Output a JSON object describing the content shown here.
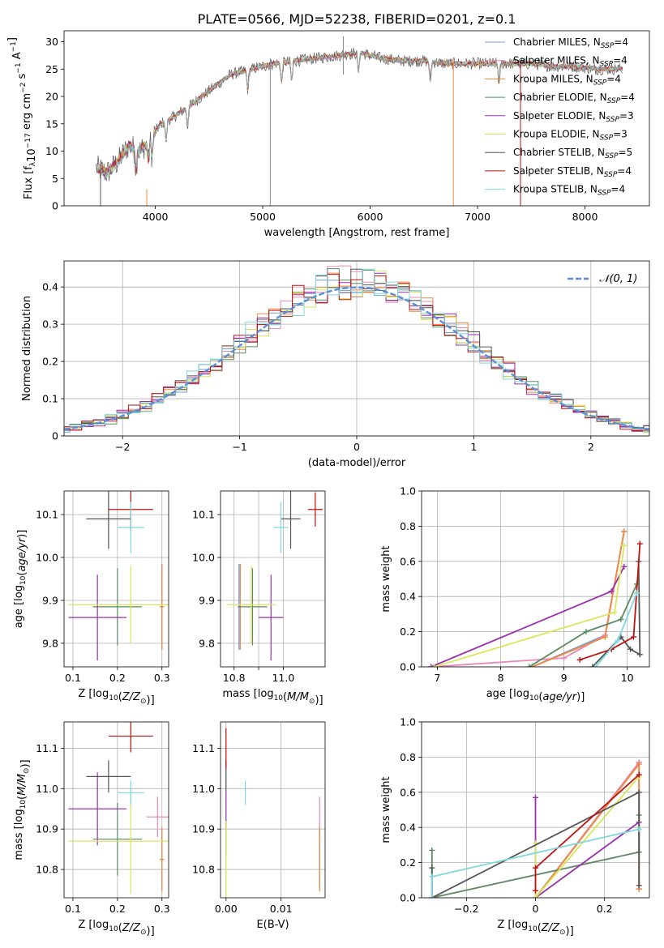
{
  "figure_title": "PLATE=0566, MJD=52238, FIBERID=0201, z=0.1",
  "colors": {
    "Chabrier MILES": "#6f9fd8",
    "Salpeter MILES": "#e888b8",
    "Kroupa MILES": "#f08a3c",
    "Chabrier ELODIE": "#5a8a62",
    "Salpeter ELODIE": "#9a2fb0",
    "Kroupa ELODIE": "#d8e65a",
    "Chabrier STELIB": "#555555",
    "Salpeter STELIB": "#c01010",
    "Kroupa STELIB": "#7fd8e0",
    "normal_curve": "#5b8fd6"
  },
  "chart_data": [
    {
      "id": "spectrum",
      "type": "line",
      "title": "PLATE=0566, MJD=52238, FIBERID=0201, z=0.1",
      "xlabel": "wavelength [Angstrom, rest frame]",
      "ylabel": "Flux [f_λ10^-17 erg cm^-2 s^-1 A^-1]",
      "xlim": [
        3150,
        8600
      ],
      "ylim": [
        0,
        32
      ],
      "xticks": [
        4000,
        5000,
        6000,
        7000,
        8000
      ],
      "yticks": [
        0,
        5,
        10,
        15,
        20,
        25,
        30
      ],
      "grid": false,
      "legend_position": "right",
      "series": [
        {
          "name": "Chabrier MILES, N_SSP=4",
          "label_main": "Chabrier MILES, N",
          "label_sub": "SSP",
          "label_end": "=4"
        },
        {
          "name": "Salpeter MILES, N_SSP=4",
          "label_main": "Salpeter MILES, N",
          "label_sub": "SSP",
          "label_end": "=4"
        },
        {
          "name": "Kroupa MILES, N_SSP=4",
          "label_main": "Kroupa MILES, N",
          "label_sub": "SSP",
          "label_end": "=4"
        },
        {
          "name": "Chabrier ELODIE, N_SSP=4",
          "label_main": "Chabrier ELODIE, N",
          "label_sub": "SSP",
          "label_end": "=4"
        },
        {
          "name": "Salpeter ELODIE, N_SSP=3",
          "label_main": "Salpeter ELODIE, N",
          "label_sub": "SSP",
          "label_end": "=3"
        },
        {
          "name": "Kroupa ELODIE, N_SSP=3",
          "label_main": "Kroupa ELODIE, N",
          "label_sub": "SSP",
          "label_end": "=3"
        },
        {
          "name": "Chabrier STELIB, N_SSP=5",
          "label_main": "Chabrier STELIB, N",
          "label_sub": "SSP",
          "label_end": "=5"
        },
        {
          "name": "Salpeter STELIB, N_SSP=4",
          "label_main": "Salpeter STELIB, N",
          "label_sub": "SSP",
          "label_end": "=4"
        },
        {
          "name": "Kroupa STELIB, N_SSP=4",
          "label_main": "Kroupa STELIB, N",
          "label_sub": "SSP",
          "label_end": "=4"
        }
      ],
      "continuum": {
        "x": [
          3450,
          3550,
          3650,
          3750,
          3850,
          3950,
          4050,
          4150,
          4300,
          4500,
          4700,
          4900,
          5100,
          5300,
          5500,
          5700,
          5900,
          6100,
          6300,
          6500,
          6700,
          6900,
          7100,
          7300,
          7500,
          7700,
          7900,
          8100,
          8300
        ],
        "y": [
          7,
          6,
          8,
          11,
          10,
          12,
          15,
          16,
          18,
          21,
          24,
          25,
          26,
          26.5,
          27,
          27.5,
          28,
          27,
          26.5,
          26.5,
          26,
          26,
          26,
          26,
          26,
          25.5,
          25.5,
          25,
          25
        ]
      },
      "spikes": [
        {
          "x": 3490,
          "y0": 0,
          "y1": 7
        },
        {
          "x": 3920,
          "y0": 0,
          "y1": 3
        },
        {
          "x": 5070,
          "y0": 0,
          "y1": 27
        },
        {
          "x": 6775,
          "y0": 0,
          "y1": 27
        },
        {
          "x": 7400,
          "y0": 0,
          "y1": 26
        },
        {
          "x": 5750,
          "y0": 24,
          "y1": 31
        }
      ]
    },
    {
      "id": "residual_histogram",
      "type": "histogram",
      "xlabel": "(data-model)/error",
      "ylabel": "Normed distribution",
      "xlim": [
        -2.5,
        2.5
      ],
      "ylim": [
        0,
        0.47
      ],
      "xticks": [
        -2,
        -1,
        0,
        1,
        2
      ],
      "yticks": [
        0.0,
        0.1,
        0.2,
        0.3,
        0.4
      ],
      "grid": true,
      "bin_width": 0.1,
      "legend": "𝒩(0, 1)",
      "legend_position": "top-right",
      "reference_curve": "standard normal density",
      "histogram_values": "per-model densities ≈ N(0,1) with noise"
    },
    {
      "id": "age_vs_Z",
      "type": "scatter",
      "xlabel": "Z [log10(Z/Z⊙)]",
      "ylabel": "age [log10(age/yr)]",
      "xlim": [
        0.08,
        0.315
      ],
      "ylim": [
        9.745,
        10.155
      ],
      "xticks": [
        0.1,
        0.2,
        0.3
      ],
      "yticks": [
        9.8,
        9.9,
        10.0,
        10.1
      ],
      "grid": true,
      "points": [
        {
          "model": "Chabrier MILES",
          "x": 0.3,
          "xerr": 0.005,
          "y": 9.885,
          "yerr": 0.1
        },
        {
          "model": "Salpeter MILES",
          "x": 0.3,
          "xerr": 0.005,
          "y": 9.885,
          "yerr": 0.1
        },
        {
          "model": "Kroupa MILES",
          "x": 0.3,
          "xerr": 0.005,
          "y": 9.885,
          "yerr": 0.1
        },
        {
          "model": "Chabrier ELODIE",
          "x": 0.2,
          "xerr": 0.055,
          "y": 9.885,
          "yerr": 0.09
        },
        {
          "model": "Salpeter ELODIE",
          "x": 0.155,
          "xerr": 0.065,
          "y": 9.86,
          "yerr": 0.1
        },
        {
          "model": "Kroupa ELODIE",
          "x": 0.23,
          "xerr": 0.14,
          "y": 9.89,
          "yerr": 0.09
        },
        {
          "model": "Chabrier STELIB",
          "x": 0.18,
          "xerr": 0.05,
          "y": 10.09,
          "yerr": 0.07
        },
        {
          "model": "Salpeter STELIB",
          "x": 0.23,
          "xerr": 0.05,
          "y": 10.112,
          "yerr": 0.05
        },
        {
          "model": "Kroupa STELIB",
          "x": 0.23,
          "xerr": 0.03,
          "y": 10.07,
          "yerr": 0.06
        }
      ]
    },
    {
      "id": "age_vs_mass",
      "type": "scatter",
      "xlabel": "mass [log10(M/M⊙)]",
      "ylabel": "",
      "xlim": [
        10.745,
        11.17
      ],
      "ylim": [
        9.745,
        10.155
      ],
      "xticks": [
        10.8,
        10.9,
        11.0
      ],
      "xticklabels": [
        "10.8",
        "",
        "11.0"
      ],
      "yticks": [
        9.8,
        9.9,
        10.0,
        10.1
      ],
      "grid": true,
      "points": [
        {
          "model": "Chabrier MILES",
          "x": 10.82,
          "xerr": 0.005,
          "y": 9.885,
          "yerr": 0.1
        },
        {
          "model": "Salpeter MILES",
          "x": 10.825,
          "xerr": 0.005,
          "y": 9.885,
          "yerr": 0.1
        },
        {
          "model": "Kroupa MILES",
          "x": 10.825,
          "xerr": 0.005,
          "y": 9.885,
          "yerr": 0.1
        },
        {
          "model": "Chabrier ELODIE",
          "x": 10.875,
          "xerr": 0.06,
          "y": 9.885,
          "yerr": 0.09
        },
        {
          "model": "Salpeter ELODIE",
          "x": 10.95,
          "xerr": 0.05,
          "y": 9.86,
          "yerr": 0.1
        },
        {
          "model": "Kroupa ELODIE",
          "x": 10.87,
          "xerr": 0.1,
          "y": 9.89,
          "yerr": 0.09
        },
        {
          "model": "Chabrier STELIB",
          "x": 11.03,
          "xerr": 0.04,
          "y": 10.09,
          "yerr": 0.07
        },
        {
          "model": "Salpeter STELIB",
          "x": 11.13,
          "xerr": 0.03,
          "y": 10.112,
          "yerr": 0.04
        },
        {
          "model": "Kroupa STELIB",
          "x": 10.99,
          "xerr": 0.03,
          "y": 10.07,
          "yerr": 0.06
        }
      ]
    },
    {
      "id": "massweight_vs_age",
      "type": "line",
      "xlabel": "age [log10(age/yr)]",
      "ylabel": "mass weight",
      "xlim": [
        6.75,
        10.35
      ],
      "ylim": [
        0,
        1
      ],
      "xticks": [
        7,
        8,
        9,
        10
      ],
      "yticks": [
        0.0,
        0.2,
        0.4,
        0.6,
        0.8,
        1.0
      ],
      "grid": true,
      "series": [
        {
          "model": "Chabrier MILES",
          "x": [
            8.5,
            9.65,
            9.95
          ],
          "y": [
            0.0,
            0.18,
            0.77
          ]
        },
        {
          "model": "Salpeter MILES",
          "x": [
            6.9,
            9.0,
            9.65,
            9.95
          ],
          "y": [
            0.0,
            0.05,
            0.18,
            0.77
          ]
        },
        {
          "model": "Kroupa MILES",
          "x": [
            8.5,
            9.65,
            9.95
          ],
          "y": [
            0.0,
            0.17,
            0.77
          ]
        },
        {
          "model": "Chabrier ELODIE",
          "x": [
            8.45,
            9.35,
            9.9,
            10.15
          ],
          "y": [
            0.0,
            0.2,
            0.27,
            0.47
          ]
        },
        {
          "model": "Salpeter ELODIE",
          "x": [
            6.9,
            9.75,
            9.95
          ],
          "y": [
            0.0,
            0.43,
            0.57
          ]
        },
        {
          "model": "Kroupa ELODIE",
          "x": [
            6.95,
            9.8,
            9.95
          ],
          "y": [
            0.0,
            0.31,
            0.69
          ]
        },
        {
          "model": "Chabrier STELIB",
          "x": [
            9.45,
            9.9,
            10.05,
            10.2,
            10.18
          ],
          "y": [
            0.0,
            0.17,
            0.1,
            0.07,
            0.6
          ]
        },
        {
          "model": "Salpeter STELIB",
          "x": [
            9.25,
            9.75,
            10.1,
            10.2
          ],
          "y": [
            0.04,
            0.1,
            0.17,
            0.7
          ]
        },
        {
          "model": "Kroupa STELIB",
          "x": [
            9.5,
            9.85,
            10.15
          ],
          "y": [
            0.0,
            0.15,
            0.42
          ]
        }
      ]
    },
    {
      "id": "mass_vs_Z",
      "type": "scatter",
      "xlabel": "Z [log10(Z/Z⊙)]",
      "ylabel": "mass [log10(M/M⊙)]",
      "xlim": [
        0.08,
        0.315
      ],
      "ylim": [
        10.73,
        11.165
      ],
      "xticks": [
        0.1,
        0.2,
        0.3
      ],
      "yticks": [
        10.8,
        10.9,
        11.0,
        11.1
      ],
      "grid": true,
      "points": [
        {
          "model": "Chabrier MILES",
          "x": 0.3,
          "xerr": 0.005,
          "y": 10.825,
          "yerr": 0.07
        },
        {
          "model": "Salpeter MILES",
          "x": 0.29,
          "xerr": 0.025,
          "y": 10.93,
          "yerr": 0.05
        },
        {
          "model": "Kroupa MILES",
          "x": 0.3,
          "xerr": 0.005,
          "y": 10.825,
          "yerr": 0.08
        },
        {
          "model": "Chabrier ELODIE",
          "x": 0.2,
          "xerr": 0.055,
          "y": 10.875,
          "yerr": 0.09
        },
        {
          "model": "Salpeter ELODIE",
          "x": 0.155,
          "xerr": 0.065,
          "y": 10.95,
          "yerr": 0.09
        },
        {
          "model": "Kroupa ELODIE",
          "x": 0.23,
          "xerr": 0.14,
          "y": 10.87,
          "yerr": 0.13
        },
        {
          "model": "Chabrier STELIB",
          "x": 0.18,
          "xerr": 0.05,
          "y": 11.03,
          "yerr": 0.04
        },
        {
          "model": "Salpeter STELIB",
          "x": 0.23,
          "xerr": 0.05,
          "y": 11.13,
          "yerr": 0.04
        },
        {
          "model": "Kroupa STELIB",
          "x": 0.23,
          "xerr": 0.03,
          "y": 10.99,
          "yerr": 0.03
        }
      ]
    },
    {
      "id": "mass_vs_EBV",
      "type": "scatter",
      "xlabel": "E(B-V)",
      "ylabel": "",
      "xlim": [
        -0.001,
        0.018
      ],
      "ylim": [
        10.73,
        11.165
      ],
      "xticks": [
        0.0,
        0.01
      ],
      "xticklabels": [
        "0.00",
        "0.01"
      ],
      "yticks": [
        10.8,
        10.9,
        11.0,
        11.1
      ],
      "grid": true,
      "points": [
        {
          "model": "Chabrier MILES",
          "x": 0.017,
          "xerr": 0.0,
          "y": 10.825,
          "yerr": 0.07
        },
        {
          "model": "Salpeter MILES",
          "x": 0.017,
          "xerr": 0.0,
          "y": 10.93,
          "yerr": 0.05
        },
        {
          "model": "Kroupa MILES",
          "x": 0.017,
          "xerr": 0.0,
          "y": 10.825,
          "yerr": 0.08
        },
        {
          "model": "Chabrier ELODIE",
          "x": 0.0,
          "xerr": 0.0,
          "y": 10.875,
          "yerr": 0.04
        },
        {
          "model": "Salpeter ELODIE",
          "x": 0.0,
          "xerr": 0.0,
          "y": 10.95,
          "yerr": 0.04
        },
        {
          "model": "Kroupa ELODIE",
          "x": 0.0,
          "xerr": 0.0,
          "y": 10.8,
          "yerr": 0.12
        },
        {
          "model": "Chabrier STELIB",
          "x": 0.0,
          "xerr": 0.0,
          "y": 11.03,
          "yerr": 0.04
        },
        {
          "model": "Salpeter STELIB",
          "x": 0.0,
          "xerr": 0.0,
          "y": 11.1,
          "yerr": 0.05
        },
        {
          "model": "Kroupa STELIB",
          "x": 0.0035,
          "xerr": 0.0,
          "y": 10.99,
          "yerr": 0.03
        }
      ]
    },
    {
      "id": "massweight_vs_Z",
      "type": "line",
      "xlabel": "Z [log10(Z/Z⊙)]",
      "ylabel": "mass weight",
      "xlim": [
        -0.33,
        0.33
      ],
      "ylim": [
        0,
        1
      ],
      "xticks": [
        -0.2,
        0.0,
        0.2
      ],
      "yticks": [
        0.0,
        0.2,
        0.4,
        0.6,
        0.8,
        1.0
      ],
      "grid": true,
      "series": [
        {
          "model": "Chabrier MILES",
          "x": [
            0.0,
            0.3,
            0.3
          ],
          "y": [
            0.0,
            0.77,
            0.05
          ]
        },
        {
          "model": "Salpeter MILES",
          "x": [
            0.0,
            0.3,
            0.3
          ],
          "y": [
            0.0,
            0.77,
            0.05
          ]
        },
        {
          "model": "Kroupa MILES",
          "x": [
            0.0,
            0.3,
            0.3
          ],
          "y": [
            0.0,
            0.76,
            0.05
          ]
        },
        {
          "model": "Chabrier ELODIE",
          "x": [
            -0.3,
            -0.3,
            0.3,
            0.3
          ],
          "y": [
            0.27,
            0.0,
            0.26,
            0.47
          ]
        },
        {
          "model": "Salpeter ELODIE",
          "x": [
            0.0,
            0.0,
            0.3
          ],
          "y": [
            0.57,
            0.0,
            0.43
          ]
        },
        {
          "model": "Kroupa ELODIE",
          "x": [
            0.0,
            0.0,
            0.3
          ],
          "y": [
            0.31,
            0.0,
            0.69
          ]
        },
        {
          "model": "Chabrier STELIB",
          "x": [
            -0.3,
            -0.3,
            0.3,
            0.3
          ],
          "y": [
            0.17,
            0.0,
            0.6,
            0.07
          ]
        },
        {
          "model": "Salpeter STELIB",
          "x": [
            0.0,
            0.0,
            0.3
          ],
          "y": [
            0.04,
            0.17,
            0.7
          ]
        },
        {
          "model": "Kroupa STELIB",
          "x": [
            -0.3,
            -0.3,
            0.3
          ],
          "y": [
            0.0,
            0.12,
            0.39
          ]
        }
      ]
    }
  ]
}
